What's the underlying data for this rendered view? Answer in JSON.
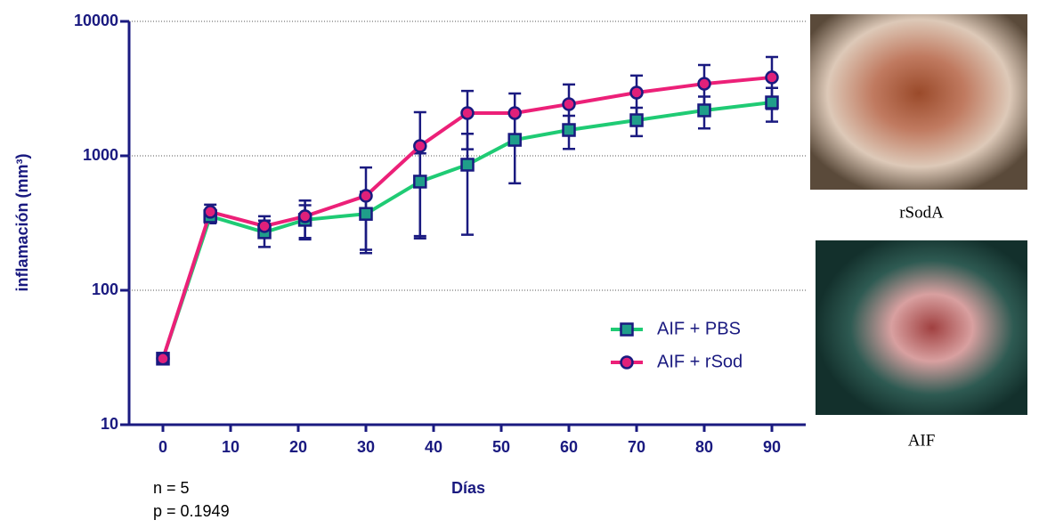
{
  "chart_data": {
    "type": "line",
    "x_label": "Días",
    "y_label": "inflamación (mm³)",
    "x": [
      0,
      7,
      15,
      21,
      30,
      38,
      45,
      52,
      60,
      70,
      80,
      90
    ],
    "xlim": [
      -5,
      95
    ],
    "xticks": [
      0,
      10,
      20,
      30,
      40,
      50,
      60,
      70,
      80,
      90
    ],
    "ylim": [
      10,
      10000
    ],
    "yticks": [
      10,
      100,
      1000,
      10000
    ],
    "log_y": true,
    "grid": true,
    "legend_position": "lower right",
    "series": [
      {
        "name": "AIF + PBS",
        "color": "#1fcb74",
        "marker_color": "#1f9e8a",
        "marker": "square",
        "values": [
          31,
          355,
          270,
          334,
          370,
          643,
          859,
          1315,
          1556,
          1840,
          2178,
          2496
        ],
        "errors": [
          0,
          40,
          60,
          95,
          170,
          400,
          600,
          690,
          430,
          440,
          580,
          700
        ]
      },
      {
        "name": "AIF + rSod",
        "color": "#ec2078",
        "marker_color": "#e0207a",
        "marker": "circle",
        "values": [
          31,
          383,
          300,
          355,
          504,
          1183,
          2080,
          2080,
          2421,
          2953,
          3435,
          3830
        ],
        "errors": [
          0,
          50,
          55,
          110,
          315,
          930,
          960,
          830,
          970,
          1000,
          1300,
          1600
        ]
      }
    ],
    "annotations": [
      "n = 5",
      "p = 0.1949"
    ],
    "photo_captions": [
      "rSodA",
      "AIF"
    ]
  }
}
